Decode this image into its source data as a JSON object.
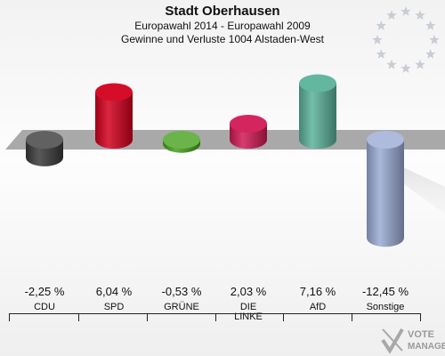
{
  "title": "Stadt Oberhausen",
  "subtitle1": "Europawahl 2014 - Europawahl 2009",
  "subtitle2": "Gewinne und Verluste 1004 Alstaden-West",
  "chart_data": {
    "type": "bar",
    "categories": [
      "CDU",
      "SPD",
      "GRÜNE",
      "DIE LINKE",
      "AfD",
      "Sonstige"
    ],
    "values": [
      -2.25,
      6.04,
      -0.53,
      2.03,
      7.16,
      -12.45
    ],
    "value_labels": [
      "-2,25 %",
      "6,04 %",
      "-0,53 %",
      "2,03 %",
      "7,16 %",
      "-12,45 %"
    ],
    "colors": [
      "#3a3a3a",
      "#d4001e",
      "#46a11c",
      "#d21a55",
      "#5bb39a",
      "#9aaad4"
    ],
    "title": "Stadt Oberhausen",
    "xlabel": "",
    "ylabel": ""
  },
  "eu_flag": {
    "star_color": "#c8cdd4"
  },
  "logo": {
    "line1": "VOTE",
    "line2": "MANAGER",
    "color": "#9a9a9a"
  }
}
